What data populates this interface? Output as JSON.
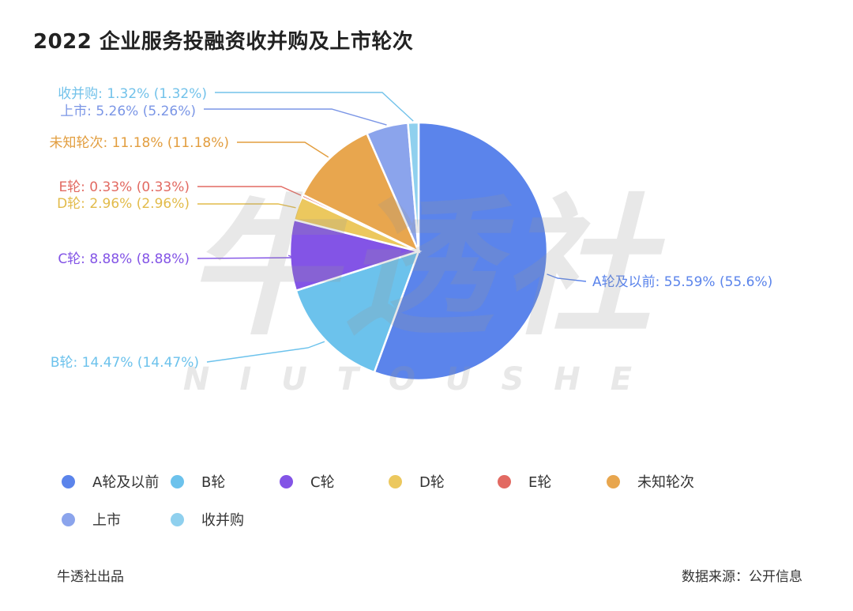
{
  "chart_data": {
    "type": "pie",
    "title": "2022 企业服务投融资收并购及上市轮次",
    "slices": [
      {
        "name": "A轮及以前",
        "value": 55.59,
        "label": "A轮及以前: 55.59% (55.6%)",
        "color": "#5b84eb",
        "label_color": "#5b84eb"
      },
      {
        "name": "B轮",
        "value": 14.47,
        "label": "B轮: 14.47% (14.47%)",
        "color": "#6cc2ec",
        "label_color": "#6cc2ec"
      },
      {
        "name": "C轮",
        "value": 8.88,
        "label": "C轮: 8.88% (8.88%)",
        "color": "#8354e6",
        "label_color": "#8354e6"
      },
      {
        "name": "D轮",
        "value": 2.96,
        "label": "D轮: 2.96% (2.96%)",
        "color": "#ecc85e",
        "label_color": "#e2bb4a"
      },
      {
        "name": "E轮",
        "value": 0.33,
        "label": "E轮: 0.33% (0.33%)",
        "color": "#e26a62",
        "label_color": "#e26a62"
      },
      {
        "name": "未知轮次",
        "value": 11.18,
        "label": "未知轮次: 11.18% (11.18%)",
        "color": "#e8a64e",
        "label_color": "#e29d3e"
      },
      {
        "name": "上市",
        "value": 5.26,
        "label": "上市: 5.26% (5.26%)",
        "color": "#8ba4ec",
        "label_color": "#7b96e6"
      },
      {
        "name": "收并购",
        "value": 1.32,
        "label": "收并购: 1.32% (1.32%)",
        "color": "#8fd0ee",
        "label_color": "#72c2ea"
      }
    ],
    "legend_position": "bottom"
  },
  "watermark": {
    "main": "牛透社",
    "sub": "NIUTOUSHE"
  },
  "footer": {
    "left": "牛透社出品",
    "right": "数据来源：公开信息"
  }
}
